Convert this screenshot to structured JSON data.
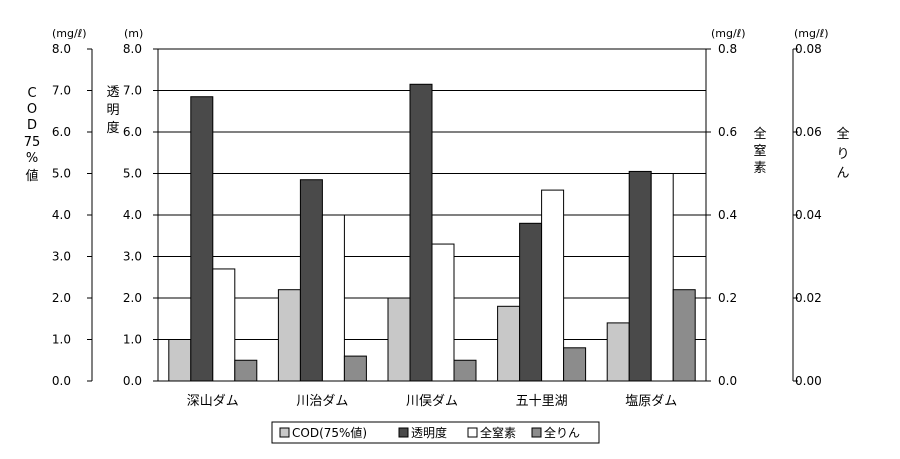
{
  "chart_data": {
    "type": "bar",
    "categories": [
      "深山ダム",
      "川治ダム",
      "川俣ダム",
      "五十里湖",
      "塩原ダム"
    ],
    "series": [
      {
        "name": "COD(75%値)",
        "axis": "cod",
        "color": "#c8c8c8",
        "values": [
          1.0,
          2.2,
          2.0,
          1.8,
          1.4
        ]
      },
      {
        "name": "透明度",
        "axis": "transparency",
        "color": "#4a4a4a",
        "values": [
          6.85,
          4.85,
          7.15,
          3.8,
          5.05
        ]
      },
      {
        "name": "全窒素",
        "axis": "nitrogen",
        "color": "#ffffff",
        "values": [
          0.27,
          0.4,
          0.33,
          0.46,
          0.5
        ]
      },
      {
        "name": "全りん",
        "axis": "phosphorus",
        "color": "#8c8c8c",
        "values": [
          0.005,
          0.006,
          0.005,
          0.008,
          0.022
        ]
      }
    ],
    "axes": {
      "cod": {
        "unit": "(mg/ℓ)",
        "title": [
          "C",
          "O",
          "D",
          "75",
          "%",
          "値"
        ],
        "ylim": [
          0,
          8
        ],
        "ticks": [
          "0.0",
          "1.0",
          "2.0",
          "3.0",
          "4.0",
          "5.0",
          "6.0",
          "7.0",
          "8.0"
        ]
      },
      "transparency": {
        "unit": "(m)",
        "title": [
          "透",
          "明",
          "度"
        ],
        "ylim": [
          0,
          8
        ],
        "ticks": [
          "0.0",
          "1.0",
          "2.0",
          "3.0",
          "4.0",
          "5.0",
          "6.0",
          "7.0",
          "8.0"
        ]
      },
      "nitrogen": {
        "unit": "(mg/ℓ)",
        "title": [
          "全",
          "窒",
          "素"
        ],
        "ylim": [
          0,
          0.8
        ],
        "ticks": [
          "0.0",
          "0.2",
          "0.4",
          "0.6",
          "0.8"
        ]
      },
      "phosphorus": {
        "unit": "(mg/ℓ)",
        "title": [
          "全",
          "り",
          "ん"
        ],
        "ylim": [
          0,
          0.08
        ],
        "ticks": [
          "0.00",
          "0.02",
          "0.04",
          "0.06",
          "0.08"
        ]
      }
    },
    "grid": true,
    "legend_position": "bottom"
  }
}
